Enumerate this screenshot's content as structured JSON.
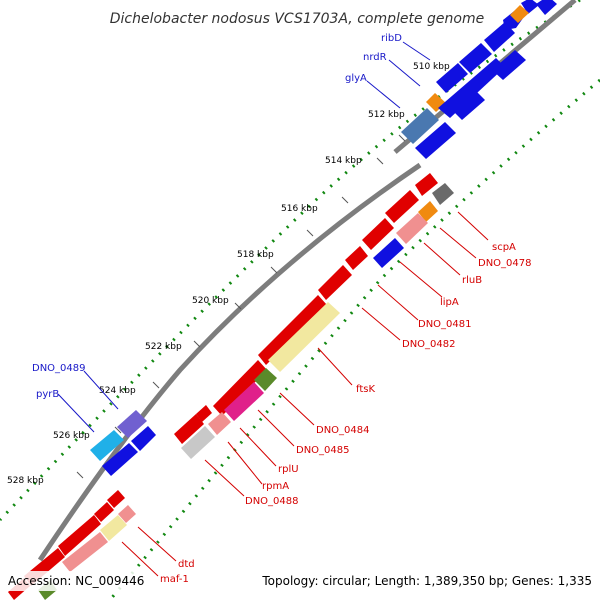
{
  "header": {
    "title": "Dichelobacter nodosus VCS1703A, complete genome"
  },
  "colors": {
    "forward_strand": "#1010e0",
    "reverse_strand": "#e00000",
    "label_forward": "#1818c8",
    "label_reverse": "#d40000",
    "backbone": "#888888",
    "tick": "#118811"
  },
  "ticks": [
    "510 kbp",
    "512 kbp",
    "514 kbp",
    "516 kbp",
    "518 kbp",
    "520 kbp",
    "522 kbp",
    "524 kbp",
    "526 kbp",
    "528 kbp"
  ],
  "gene_labels": {
    "forward": [
      "ribD",
      "nrdR",
      "glyA",
      "DNO_0489",
      "pyrB"
    ],
    "reverse": [
      "scpA",
      "DNO_0478",
      "rluB",
      "lipA",
      "DNO_0481",
      "DNO_0482",
      "ftsK",
      "DNO_0484",
      "DNO_0485",
      "rplU",
      "rpmA",
      "DNO_0488",
      "dtd",
      "maf-1"
    ]
  },
  "footer": {
    "accession": "Accession: NC_009446",
    "summary": "Topology: circular; Length: 1,389,350 bp; Genes: 1,335"
  }
}
